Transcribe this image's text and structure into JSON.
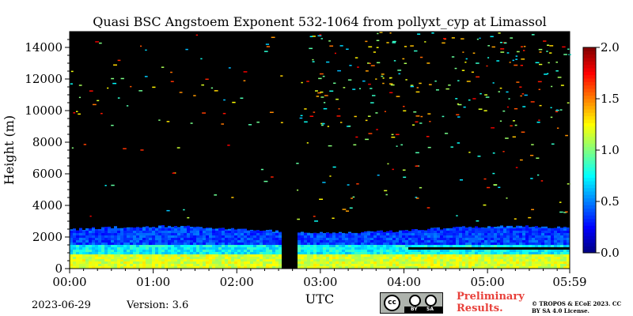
{
  "chart_data": {
    "type": "heatmap",
    "title": "Quasi BSC Angstoem Exponent 532-1064 from pollyxt_cyp at Limassol",
    "xlabel": "UTC",
    "ylabel": "Height (m)",
    "xlim": [
      "00:00",
      "05:59"
    ],
    "ylim": [
      0,
      15000
    ],
    "x_ticks": [
      "00:00",
      "01:00",
      "02:00",
      "03:00",
      "04:00",
      "05:00",
      "05:59"
    ],
    "y_ticks": [
      0,
      2000,
      4000,
      6000,
      8000,
      10000,
      12000,
      14000
    ],
    "colorbar": {
      "range": [
        0.0,
        2.0
      ],
      "ticks": [
        "0.0",
        "0.5",
        "1.0",
        "1.5",
        "2.0"
      ],
      "colormap": "jet"
    },
    "background_color": "#000000",
    "data_gap": {
      "start": "02:32",
      "end": "02:42"
    },
    "layers": [
      {
        "name": "near-surface layer",
        "height_range_m": [
          0,
          800
        ],
        "angstroem_exponent": 1.1
      },
      {
        "name": "lower aerosol layer",
        "height_range_m": [
          800,
          1500
        ],
        "angstroem_exponent": 0.75
      },
      {
        "name": "upper aerosol layer",
        "height_range_m": [
          1500,
          2500
        ],
        "angstroem_exponent": 0.35
      },
      {
        "name": "separating gap after 04:00",
        "height_range_m": [
          1100,
          1300
        ],
        "angstroem_exponent": null
      }
    ]
  },
  "footer": {
    "date": "2023-06-29",
    "version": "Version: 3.6",
    "license_badge": {
      "cc": "cc",
      "by": "BY",
      "sa": "SA"
    },
    "preliminary": "Preliminary Results.",
    "copyright": "© TROPOS & ECoE 2023. CC BY SA 4.0 License."
  }
}
